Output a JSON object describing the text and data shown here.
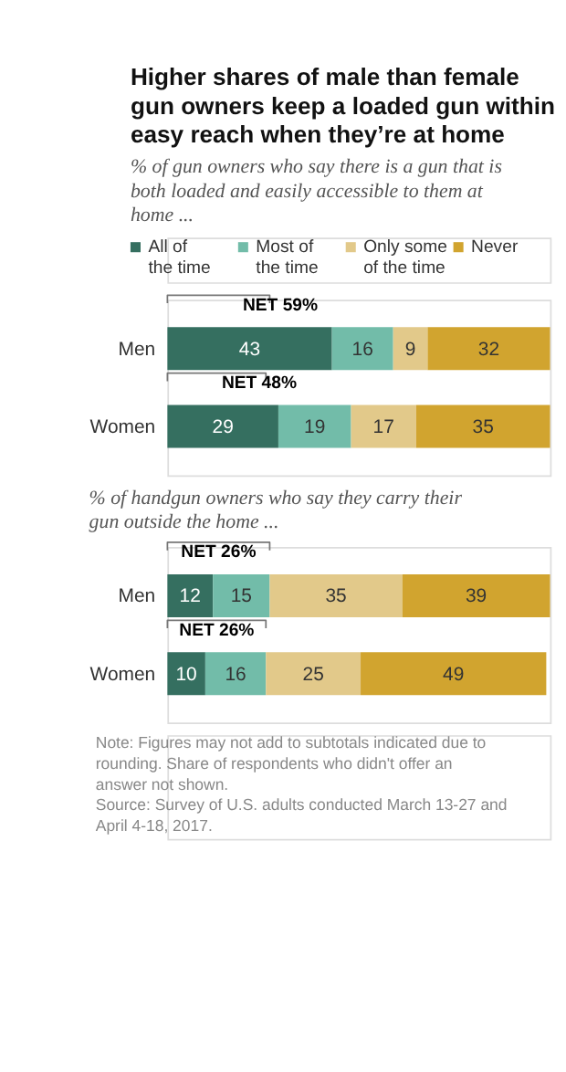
{
  "chart_data": [
    {
      "type": "bar",
      "orientation": "horizontal",
      "stacked": true,
      "data_labels": true,
      "legend": "top",
      "grid": false,
      "title": "Higher shares of male than female gun owners keep a loaded gun within easy reach when they’re at home",
      "subtitle": "% of gun owners who say there is a gun that is both loaded and easily accessible to them at home ...",
      "categories": [
        "Men",
        "Women"
      ],
      "series": [
        {
          "name": "All of the time",
          "color": "#356f60",
          "values": [
            43,
            29
          ]
        },
        {
          "name": "Most of the time",
          "color": "#72bca9",
          "values": [
            16,
            19
          ]
        },
        {
          "name": "Only some of the time",
          "color": "#e2c98a",
          "values": [
            9,
            17
          ]
        },
        {
          "name": "Never",
          "color": "#d1a42f",
          "values": [
            32,
            35
          ]
        }
      ],
      "annotations": [
        "NET 59%",
        "NET 48%"
      ]
    },
    {
      "type": "bar",
      "orientation": "horizontal",
      "stacked": true,
      "data_labels": true,
      "grid": false,
      "subtitle": "% of handgun owners who say they carry their gun outside the home ...",
      "categories": [
        "Men",
        "Women"
      ],
      "series": [
        {
          "color": "#356f60",
          "values": [
            12,
            10
          ]
        },
        {
          "color": "#72bca9",
          "values": [
            15,
            16
          ]
        },
        {
          "color": "#e2c98a",
          "values": [
            35,
            25
          ]
        },
        {
          "color": "#d1a42f",
          "values": [
            39,
            49
          ]
        }
      ],
      "annotations": [
        "NET 26%",
        "NET 26%",
        "Note: Figures may not add to subtotals indicated due to rounding. Share of respondents who didn't offer an answer not shown.",
        "Source: Survey of U.S. adults conducted March 13-27 and April 4-18, 2017."
      ]
    }
  ]
}
